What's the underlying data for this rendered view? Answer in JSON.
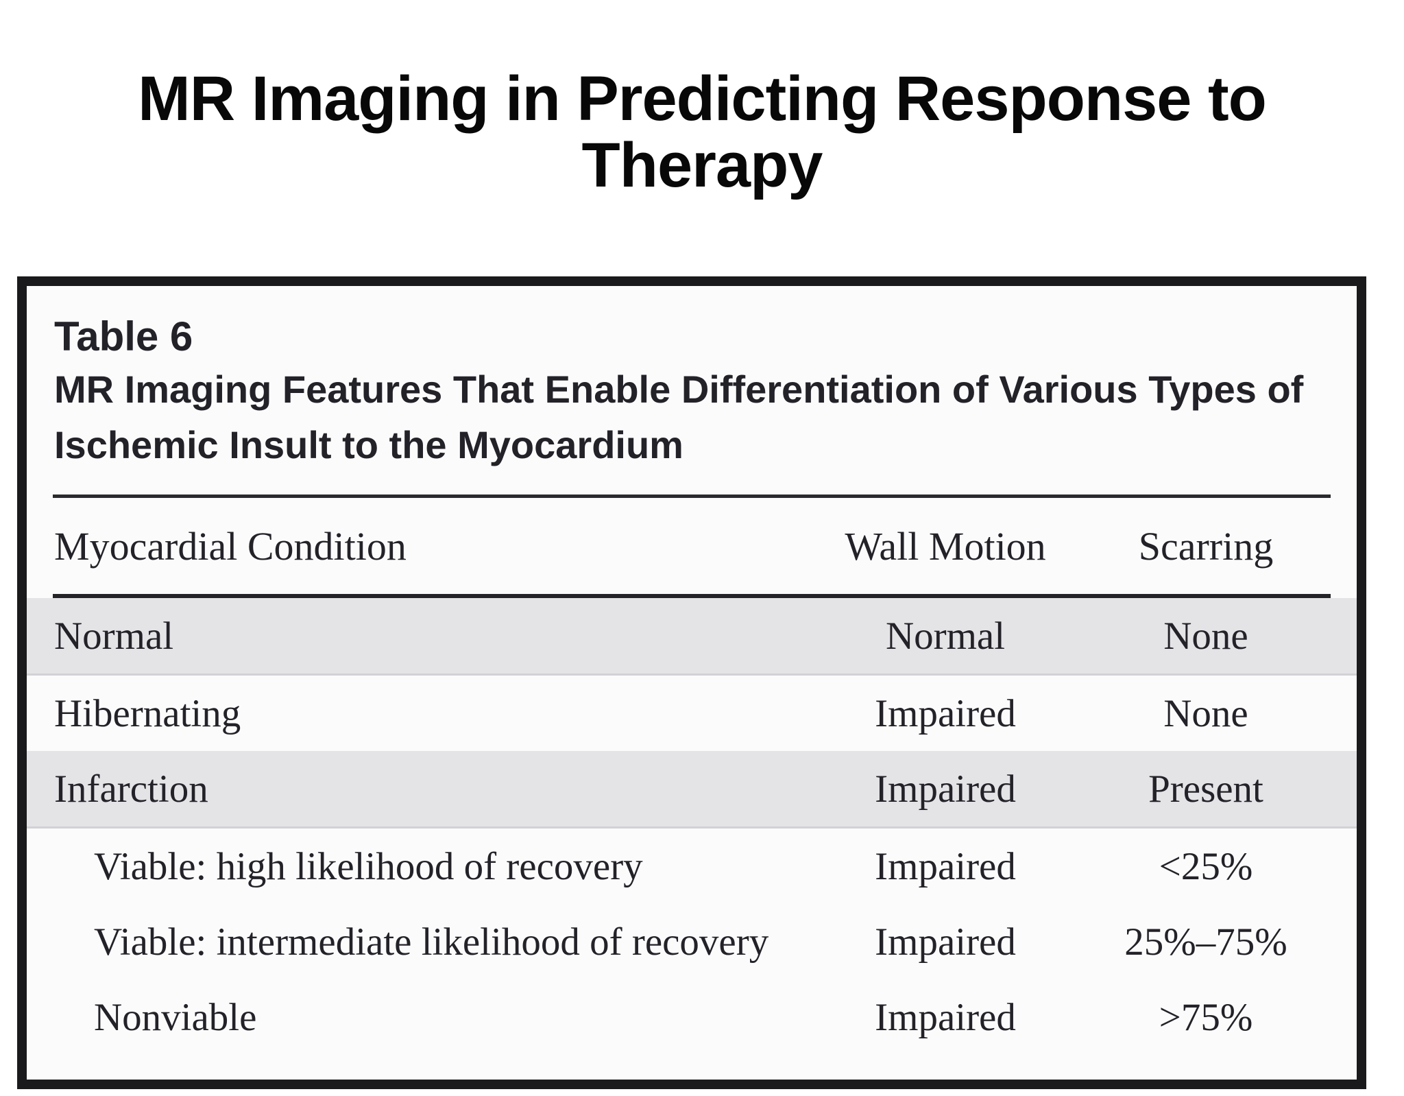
{
  "slide": {
    "title_line1": "MR Imaging in Predicting Response to",
    "title_line2": "Therapy"
  },
  "table_figure": {
    "label": "Table 6",
    "caption_line1": "MR Imaging Features That Enable Differentiation of Various Types of",
    "caption_line2": "Ischemic Insult to the Myocardium",
    "columns": [
      "Myocardial Condition",
      "Wall Motion",
      "Scarring"
    ],
    "rows": [
      {
        "condition": "Normal",
        "wall_motion": "Normal",
        "scarring": "None",
        "shaded": true,
        "indented": false
      },
      {
        "condition": "Hibernating",
        "wall_motion": "Impaired",
        "scarring": "None",
        "shaded": false,
        "indented": false
      },
      {
        "condition": "Infarction",
        "wall_motion": "Impaired",
        "scarring": "Present",
        "shaded": true,
        "indented": false
      },
      {
        "condition": "Viable: high likelihood of recovery",
        "wall_motion": "Impaired",
        "scarring": "<25%",
        "shaded": false,
        "indented": true
      },
      {
        "condition": "Viable: intermediate likelihood of recovery",
        "wall_motion": "Impaired",
        "scarring": "25%–75%",
        "shaded": false,
        "indented": true
      },
      {
        "condition": "Nonviable",
        "wall_motion": "Impaired",
        "scarring": ">75%",
        "shaded": false,
        "indented": true
      }
    ],
    "colors": {
      "row_shade": "#e4e3e6",
      "frame_border": "#1a191c",
      "text": "#232228"
    }
  }
}
